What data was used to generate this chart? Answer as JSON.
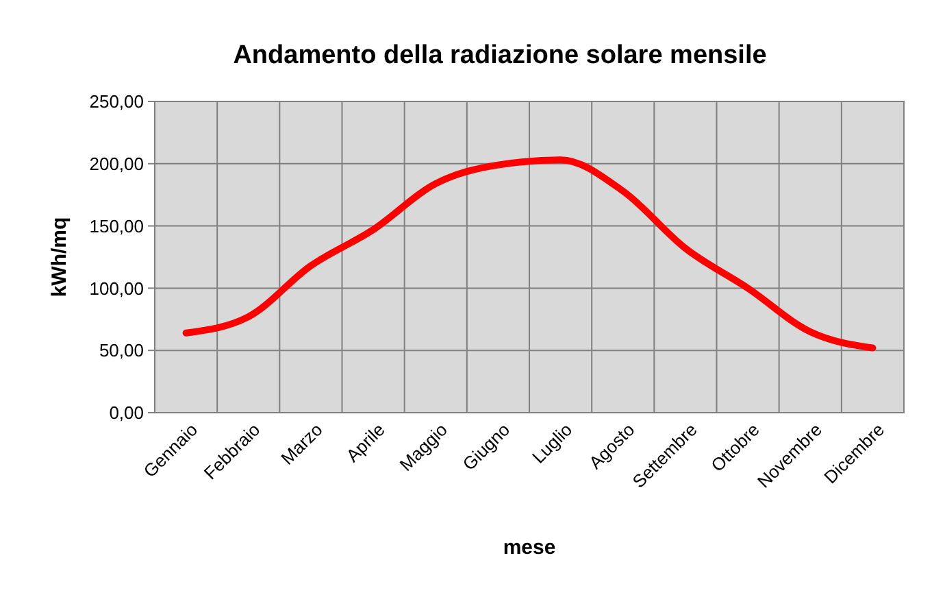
{
  "chart_data": {
    "type": "line",
    "title": "Andamento della radiazione solare mensile",
    "xlabel": "mese",
    "ylabel": "kWh/mq",
    "categories": [
      "Gennaio",
      "Febbraio",
      "Marzo",
      "Aprile",
      "Maggio",
      "Giugno",
      "Luglio",
      "Agosto",
      "Settembre",
      "Ottobre",
      "Novembre",
      "Dicembre"
    ],
    "series": [
      {
        "color": "#ff0000",
        "values": [
          64,
          77,
          118,
          147,
          184,
          199,
          203,
          178,
          132,
          100,
          65,
          52
        ]
      }
    ],
    "ylim": [
      0,
      250
    ],
    "yticks": [
      {
        "value": 0,
        "label": "0,00"
      },
      {
        "value": 50,
        "label": "50,00"
      },
      {
        "value": 100,
        "label": "100,00"
      },
      {
        "value": 150,
        "label": "150,00"
      },
      {
        "value": 200,
        "label": "200,00"
      },
      {
        "value": 250,
        "label": "250,00"
      }
    ],
    "grid": true,
    "marker": "none",
    "line_style": "solid"
  }
}
